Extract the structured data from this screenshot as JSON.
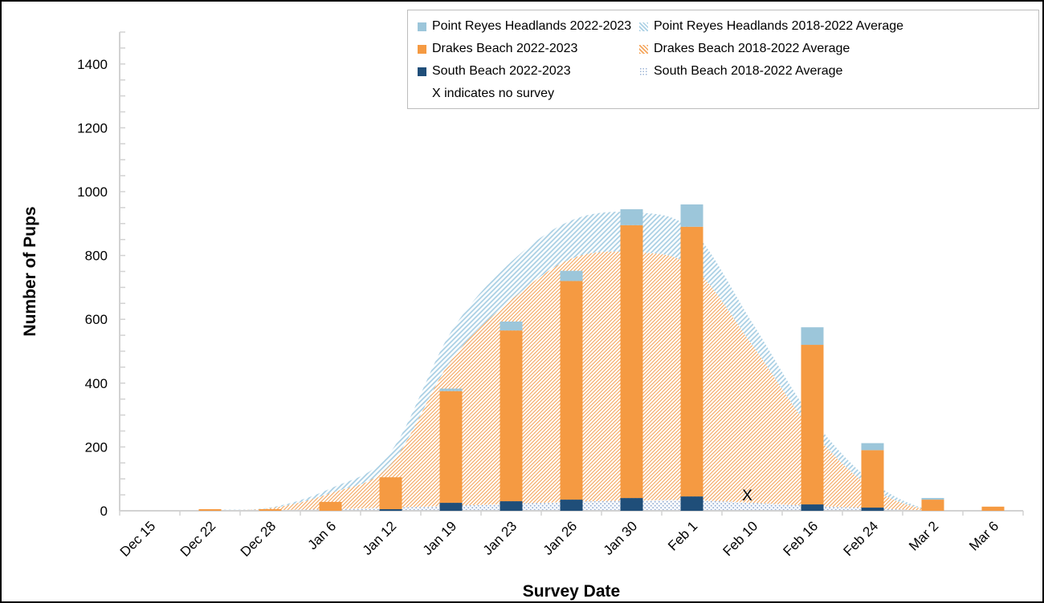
{
  "legend": {
    "items": [
      {
        "label": "Point Reyes Headlands 2022-2023",
        "swatch": "solid",
        "color": "#9CC6DA"
      },
      {
        "label": "Point Reyes Headlands 2018-2022 Average",
        "swatch": "hatch",
        "color": "#ABD0E4"
      },
      {
        "label": "Drakes Beach 2022-2023",
        "swatch": "solid",
        "color": "#F59A42"
      },
      {
        "label": "Drakes Beach 2018-2022 Average",
        "swatch": "hatch",
        "color": "#F4A55C"
      },
      {
        "label": "South Beach 2022-2023",
        "swatch": "solid",
        "color": "#1F4E79"
      },
      {
        "label": "South Beach 2018-2022 Average",
        "swatch": "dots",
        "color": "#9DB4D6"
      }
    ],
    "note": "X indicates no survey"
  },
  "chart_data": {
    "type": "bar",
    "title": "",
    "xlabel": "Survey Date",
    "ylabel": "Number of Pups",
    "ylim": [
      0,
      1500
    ],
    "y_major_tick": 200,
    "y_minor_tick": 50,
    "y_tick_labels": [
      "0",
      "200",
      "400",
      "600",
      "800",
      "1000",
      "1200",
      "1400"
    ],
    "grid": false,
    "legend_position": "top-right",
    "categories": [
      "Dec 15",
      "Dec 22",
      "Dec 28",
      "Jan 6",
      "Jan 12",
      "Jan 19",
      "Jan 23",
      "Jan 26",
      "Jan 30",
      "Feb 1",
      "Feb 10",
      "Feb 16",
      "Feb 24",
      "Mar 2",
      "Mar 6"
    ],
    "bar_series": [
      {
        "name": "South Beach 2022-2023",
        "color": "#1F4E79",
        "values": [
          0,
          0,
          0,
          0,
          5,
          25,
          30,
          35,
          40,
          45,
          null,
          20,
          10,
          0,
          0
        ]
      },
      {
        "name": "Drakes Beach 2022-2023",
        "color": "#F59A42",
        "values": [
          0,
          5,
          5,
          28,
          100,
          350,
          535,
          685,
          855,
          845,
          null,
          500,
          180,
          35,
          13
        ]
      },
      {
        "name": "Point Reyes Headlands 2022-2023",
        "color": "#9CC6DA",
        "values": [
          0,
          0,
          0,
          0,
          0,
          8,
          28,
          32,
          50,
          70,
          null,
          55,
          22,
          5,
          0
        ]
      }
    ],
    "area_series": [
      {
        "name": "Point Reyes Headlands 2018-2022 Average",
        "pattern": "diagonal-hatch",
        "color": "#ABD0E4",
        "values": [
          0,
          3,
          10,
          70,
          185,
          560,
          780,
          910,
          935,
          880,
          590,
          290,
          90,
          0,
          0
        ]
      },
      {
        "name": "Drakes Beach 2018-2022 Average",
        "pattern": "diagonal-hatch-fine",
        "color": "#F4A55C",
        "values": [
          0,
          2,
          8,
          55,
          145,
          470,
          660,
          790,
          810,
          765,
          520,
          250,
          70,
          0,
          0
        ]
      },
      {
        "name": "South Beach 2018-2022 Average",
        "pattern": "dots",
        "color": "#9DB4D6",
        "values": [
          0,
          0,
          2,
          5,
          10,
          15,
          22,
          28,
          32,
          33,
          25,
          15,
          8,
          0,
          0
        ]
      }
    ],
    "no_survey": {
      "category": "Feb 10",
      "marker": "X"
    },
    "axis_color": "#D2D2D2"
  }
}
